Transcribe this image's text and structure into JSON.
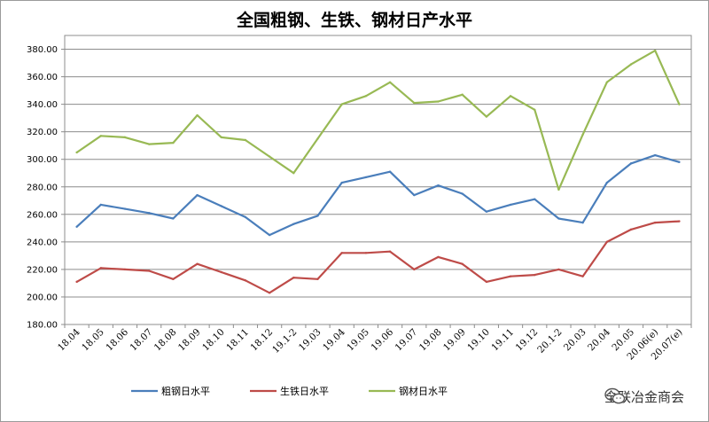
{
  "chart_data": {
    "type": "line",
    "title": "全国粗钢、生铁、钢材日产水平",
    "categories": [
      "18.04",
      "18.05",
      "18.06",
      "18.07",
      "18.08",
      "18.09",
      "18.10",
      "18.11",
      "18.12",
      "19.1-2",
      "19.03",
      "19.04",
      "19.05",
      "19.06",
      "19.07",
      "19.08",
      "19.09",
      "19.10",
      "19.11",
      "19.12",
      "20.1-2",
      "20.03",
      "20.04",
      "20.05",
      "20.06(e)",
      "20.07(e)"
    ],
    "y_ticks": [
      "180.00",
      "200.00",
      "220.00",
      "240.00",
      "260.00",
      "280.00",
      "300.00",
      "320.00",
      "340.00",
      "360.00",
      "380.00"
    ],
    "ylim": [
      180,
      390
    ],
    "grid": true,
    "legend_position": "bottom",
    "series": [
      {
        "name": "粗钢日水平",
        "color": "#4a7ebb",
        "values": [
          251,
          267,
          264,
          261,
          257,
          274,
          266,
          258,
          245,
          253,
          259,
          283,
          287,
          291,
          274,
          281,
          275,
          262,
          267,
          271,
          257,
          254,
          283,
          297,
          303,
          298
        ]
      },
      {
        "name": "生铁日水平",
        "color": "#be4b48",
        "values": [
          211,
          221,
          220,
          219,
          213,
          224,
          218,
          212,
          203,
          214,
          213,
          232,
          232,
          233,
          220,
          229,
          224,
          211,
          215,
          216,
          220,
          215,
          240,
          249,
          254,
          255
        ]
      },
      {
        "name": "钢材日水平",
        "color": "#98b954",
        "values": [
          305,
          317,
          316,
          311,
          312,
          332,
          316,
          314,
          302,
          290,
          315,
          340,
          346,
          356,
          341,
          342,
          347,
          331,
          346,
          336,
          278,
          318,
          356,
          369,
          379,
          340
        ]
      }
    ]
  },
  "watermark": {
    "text": "全联冶金商会",
    "icon": "wechat-icon"
  }
}
